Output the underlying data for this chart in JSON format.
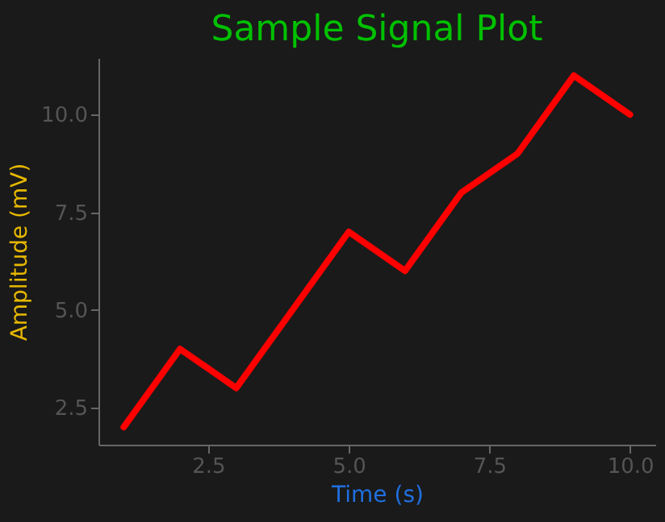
{
  "chart_data": {
    "type": "line",
    "title": "Sample Signal Plot",
    "xlabel": "Time (s)",
    "ylabel": "Amplitude (mV)",
    "x": [
      1,
      2,
      3,
      4,
      5,
      6,
      7,
      8,
      9,
      10
    ],
    "series": [
      {
        "color": "#ff0000",
        "values": [
          2,
          4,
          3,
          5,
          7,
          6,
          8,
          9,
          11,
          10
        ]
      }
    ],
    "xlim": [
      0.55,
      10.45
    ],
    "ylim": [
      1.55,
      11.45
    ],
    "xticks": [
      2.5,
      {
        "value": 5,
        "label": "5.0"
      },
      7.5,
      {
        "value": 10,
        "label": "10.0"
      }
    ],
    "yticks": [
      2.5,
      {
        "value": 5,
        "label": "5.0"
      },
      7.5,
      {
        "value": 10,
        "label": "10.0"
      }
    ],
    "grid": false,
    "marker": "none",
    "line_style": "solid"
  }
}
